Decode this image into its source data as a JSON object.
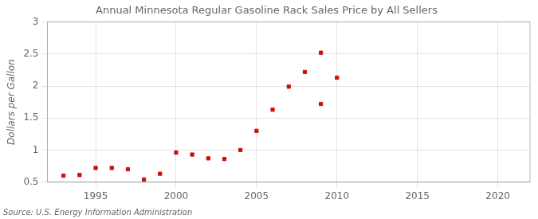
{
  "chart_data": {
    "type": "scatter",
    "title": "Annual Minnesota Regular Gasoline Rack Sales Price by All Sellers",
    "y_label": "Dollars per Gallon",
    "source": "Source: U.S. Energy Information Administration",
    "x": [
      1993,
      1994,
      1995,
      1996,
      1997,
      1998,
      1999,
      2000,
      2001,
      2002,
      2003,
      2004,
      2005,
      2006,
      2007,
      2008,
      2009,
      2010,
      2009
    ],
    "values": [
      0.6,
      0.61,
      0.72,
      0.72,
      0.7,
      0.54,
      0.63,
      0.96,
      0.93,
      0.87,
      0.86,
      1.0,
      1.3,
      1.63,
      1.99,
      2.22,
      2.52,
      2.13,
      1.72
    ],
    "color": "#cc1111",
    "marker": "square",
    "xlim": [
      1992,
      2022
    ],
    "ylim": [
      0.5,
      3.0
    ],
    "xticks": [
      1995,
      2000,
      2005,
      2010,
      2015,
      2020
    ],
    "yticks": [
      0.5,
      1.0,
      1.5,
      2.0,
      2.5,
      3.0
    ],
    "grid": true
  }
}
